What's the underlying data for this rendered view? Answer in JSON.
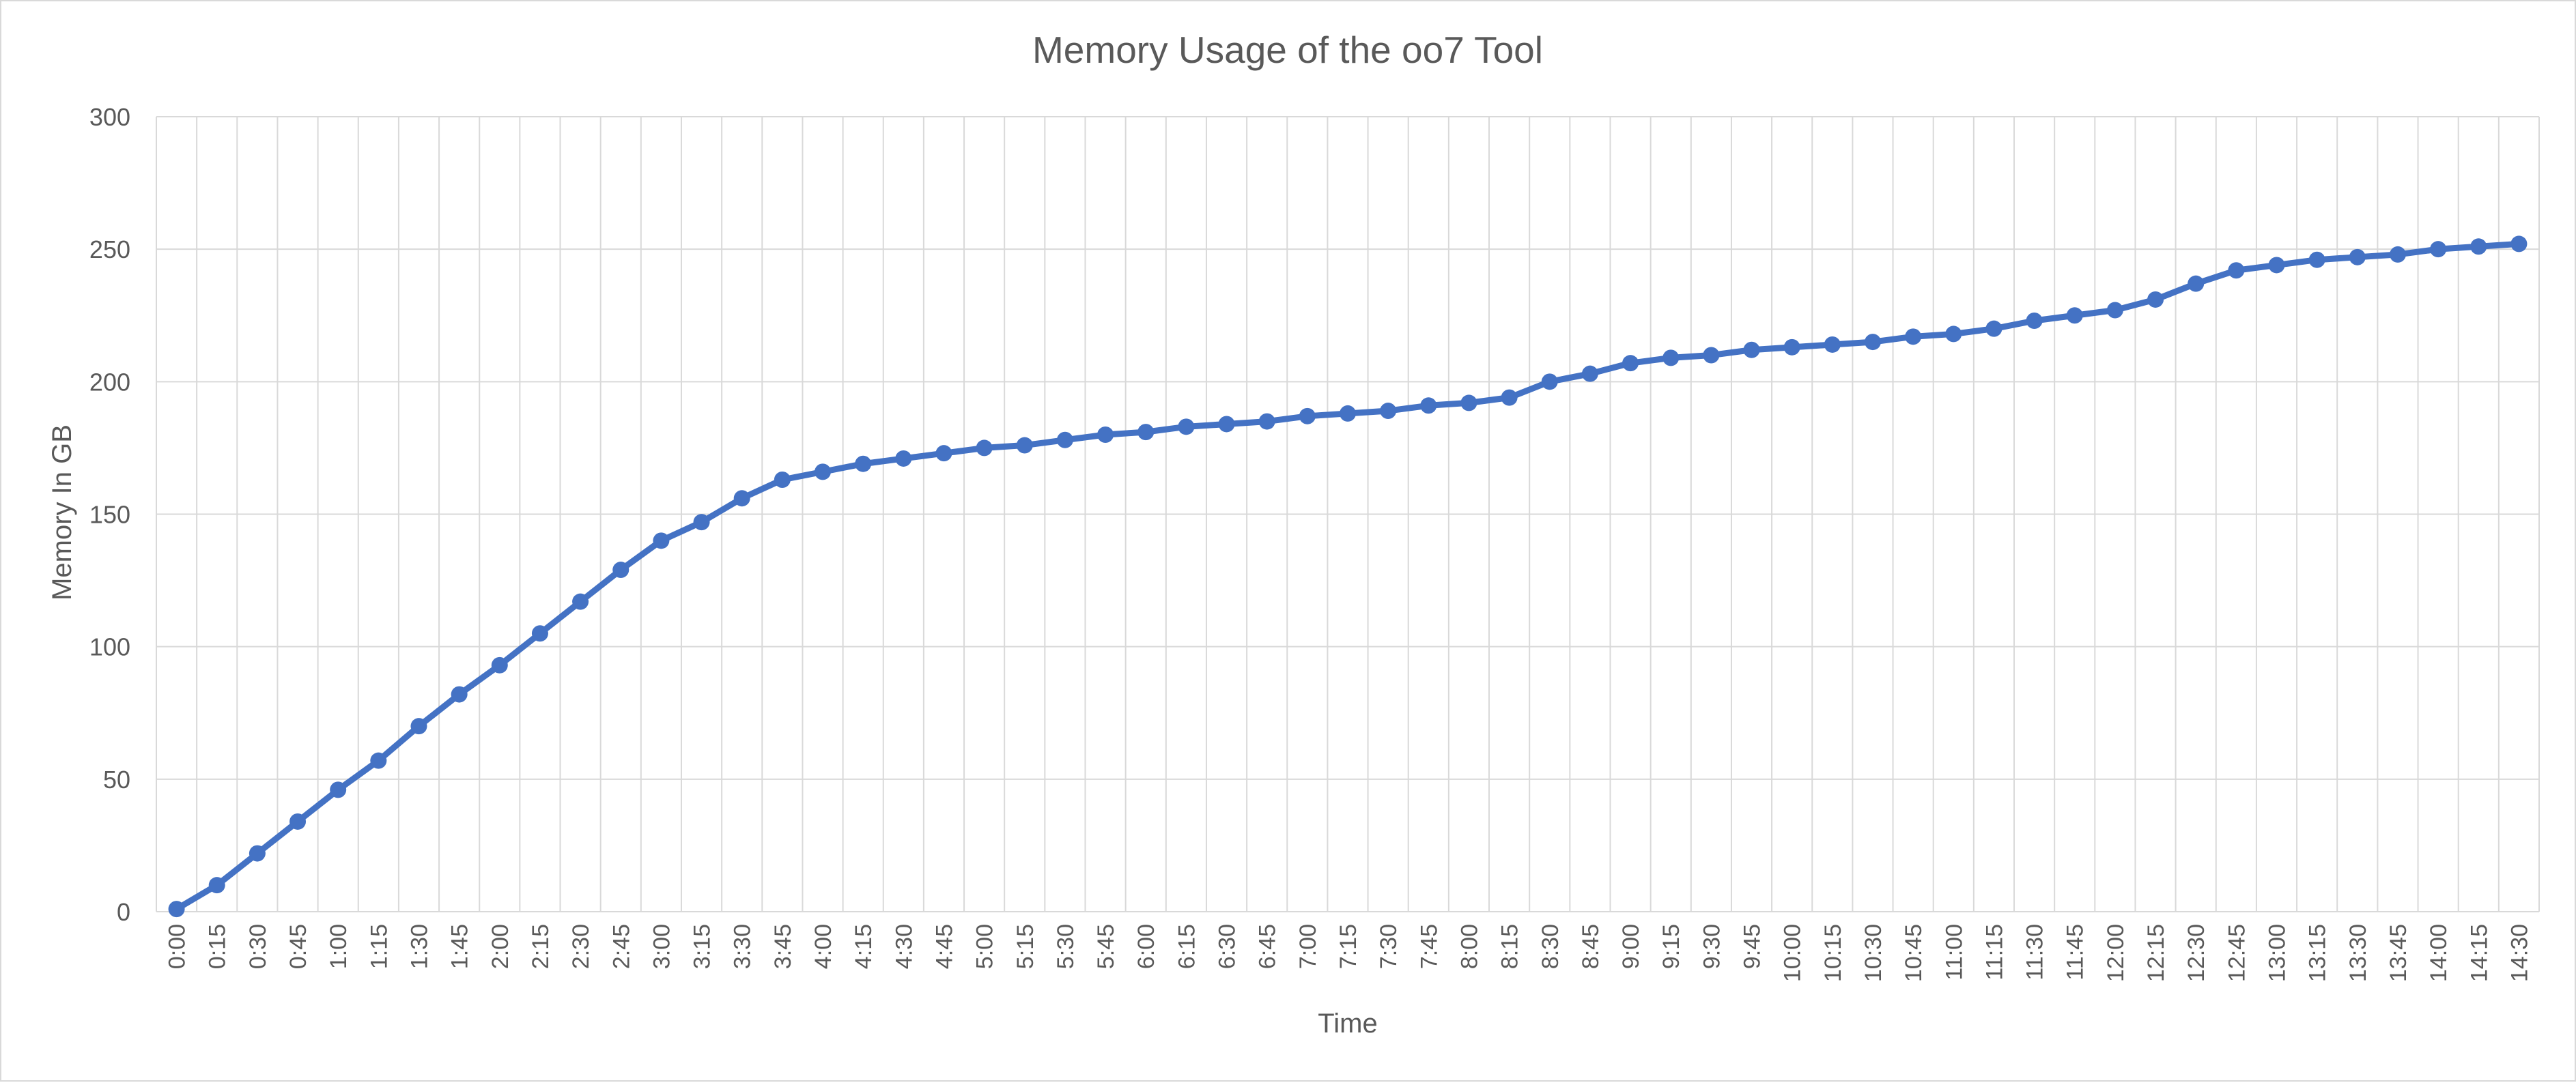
{
  "chart_data": {
    "type": "line",
    "title": "Memory Usage of the oo7 Tool",
    "xlabel": "Time",
    "ylabel": "Memory In GB",
    "ylim": [
      0,
      300
    ],
    "yticks": [
      0,
      50,
      100,
      150,
      200,
      250,
      300
    ],
    "grid": true,
    "legend": "none",
    "categories": [
      "0:00",
      "0:15",
      "0:30",
      "0:45",
      "1:00",
      "1:15",
      "1:30",
      "1:45",
      "2:00",
      "2:15",
      "2:30",
      "2:45",
      "3:00",
      "3:15",
      "3:30",
      "3:45",
      "4:00",
      "4:15",
      "4:30",
      "4:45",
      "5:00",
      "5:15",
      "5:30",
      "5:45",
      "6:00",
      "6:15",
      "6:30",
      "6:45",
      "7:00",
      "7:15",
      "7:30",
      "7:45",
      "8:00",
      "8:15",
      "8:30",
      "8:45",
      "9:00",
      "9:15",
      "9:30",
      "9:45",
      "10:00",
      "10:15",
      "10:30",
      "10:45",
      "11:00",
      "11:15",
      "11:30",
      "11:45",
      "12:00",
      "12:15",
      "12:30",
      "12:45",
      "13:00",
      "13:15",
      "13:30",
      "13:45",
      "14:00",
      "14:15",
      "14:30"
    ],
    "series": [
      {
        "color": "#4472C4",
        "values": [
          1,
          10,
          22,
          34,
          46,
          57,
          70,
          82,
          93,
          105,
          117,
          129,
          140,
          147,
          156,
          163,
          166,
          169,
          171,
          173,
          175,
          176,
          178,
          180,
          181,
          183,
          184,
          185,
          187,
          188,
          189,
          191,
          192,
          194,
          200,
          203,
          207,
          209,
          210,
          212,
          213,
          214,
          215,
          217,
          218,
          220,
          223,
          225,
          227,
          231,
          237,
          242,
          244,
          246,
          247,
          248,
          250,
          251,
          252
        ]
      }
    ]
  },
  "colors": {
    "series": "#4472C4",
    "gridline": "#D9D9D9",
    "text": "#595959",
    "border": "#D9D9D9"
  }
}
